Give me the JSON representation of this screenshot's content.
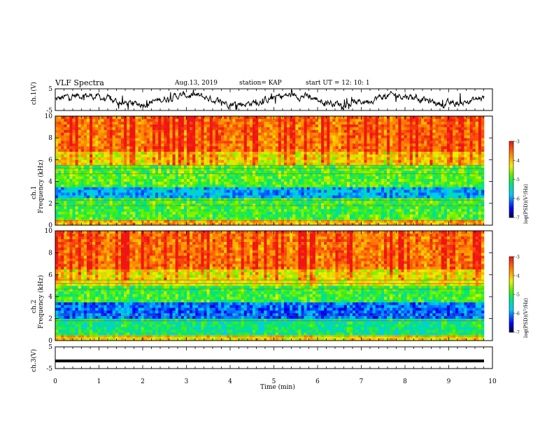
{
  "header": {
    "title": "VLF Spectra",
    "date": "Aug.13, 2019",
    "station": "station= KAP",
    "start": "start  UT  =   12: 10: 1"
  },
  "chart_data": [
    {
      "type": "line",
      "panel": "ch1-waveform",
      "ylabel": "ch.1(V)",
      "ylim": [
        -5,
        5
      ],
      "yticks": [
        "5",
        "-5"
      ],
      "xlim": [
        0,
        10
      ],
      "note_values": "continuous noisy waveform fluctuating roughly between -4 and 4 V"
    },
    {
      "type": "heatmap",
      "panel": "ch1-spectrogram",
      "ylabel": "ch.1\nFrequency (kHz)",
      "ylim": [
        0,
        10
      ],
      "yticks": [
        "0",
        "2",
        "4",
        "6",
        "8",
        "10"
      ],
      "xlim": [
        0,
        10
      ],
      "bands": [
        {
          "from": 0,
          "to": 0.5,
          "level": -4.0
        },
        {
          "from": 0.5,
          "to": 2.5,
          "level": -5.0
        },
        {
          "from": 2.5,
          "to": 3.4,
          "level": -5.9
        },
        {
          "from": 3.4,
          "to": 5.5,
          "level": -4.9
        },
        {
          "from": 5.5,
          "to": 6.8,
          "level": -4.2
        },
        {
          "from": 6.8,
          "to": 10,
          "level": -3.6
        }
      ]
    },
    {
      "type": "heatmap",
      "panel": "ch2-spectrogram",
      "ylabel": "ch.2\nFrequency (kHz)",
      "ylim": [
        0,
        10
      ],
      "yticks": [
        "0",
        "2",
        "4",
        "6",
        "8",
        "10"
      ],
      "xlim": [
        0,
        10
      ],
      "bands": [
        {
          "from": 0,
          "to": 0.5,
          "level": -4.2
        },
        {
          "from": 0.5,
          "to": 2.0,
          "level": -5.3
        },
        {
          "from": 2.0,
          "to": 3.5,
          "level": -6.2
        },
        {
          "from": 3.5,
          "to": 5.0,
          "level": -5.0
        },
        {
          "from": 5.0,
          "to": 6.5,
          "level": -4.3
        },
        {
          "from": 6.5,
          "to": 10,
          "level": -3.6
        }
      ]
    },
    {
      "type": "line",
      "panel": "ch3-waveform",
      "ylabel": "ch.3(V)",
      "ylim": [
        -5,
        5
      ],
      "yticks": [
        "5",
        "-5"
      ],
      "xlim": [
        0,
        10
      ],
      "values_constant": -1.5
    }
  ],
  "xaxis": {
    "label": "Time  (min)",
    "ticks": [
      "0",
      "1",
      "2",
      "3",
      "4",
      "5",
      "6",
      "7",
      "8",
      "9",
      "10"
    ]
  },
  "colorbar": {
    "label": "log(PSD)(V²/Hz)",
    "ticks": [
      "-3",
      "-4",
      "-5",
      "-6",
      "-7"
    ],
    "range": [
      -7,
      -3
    ]
  }
}
